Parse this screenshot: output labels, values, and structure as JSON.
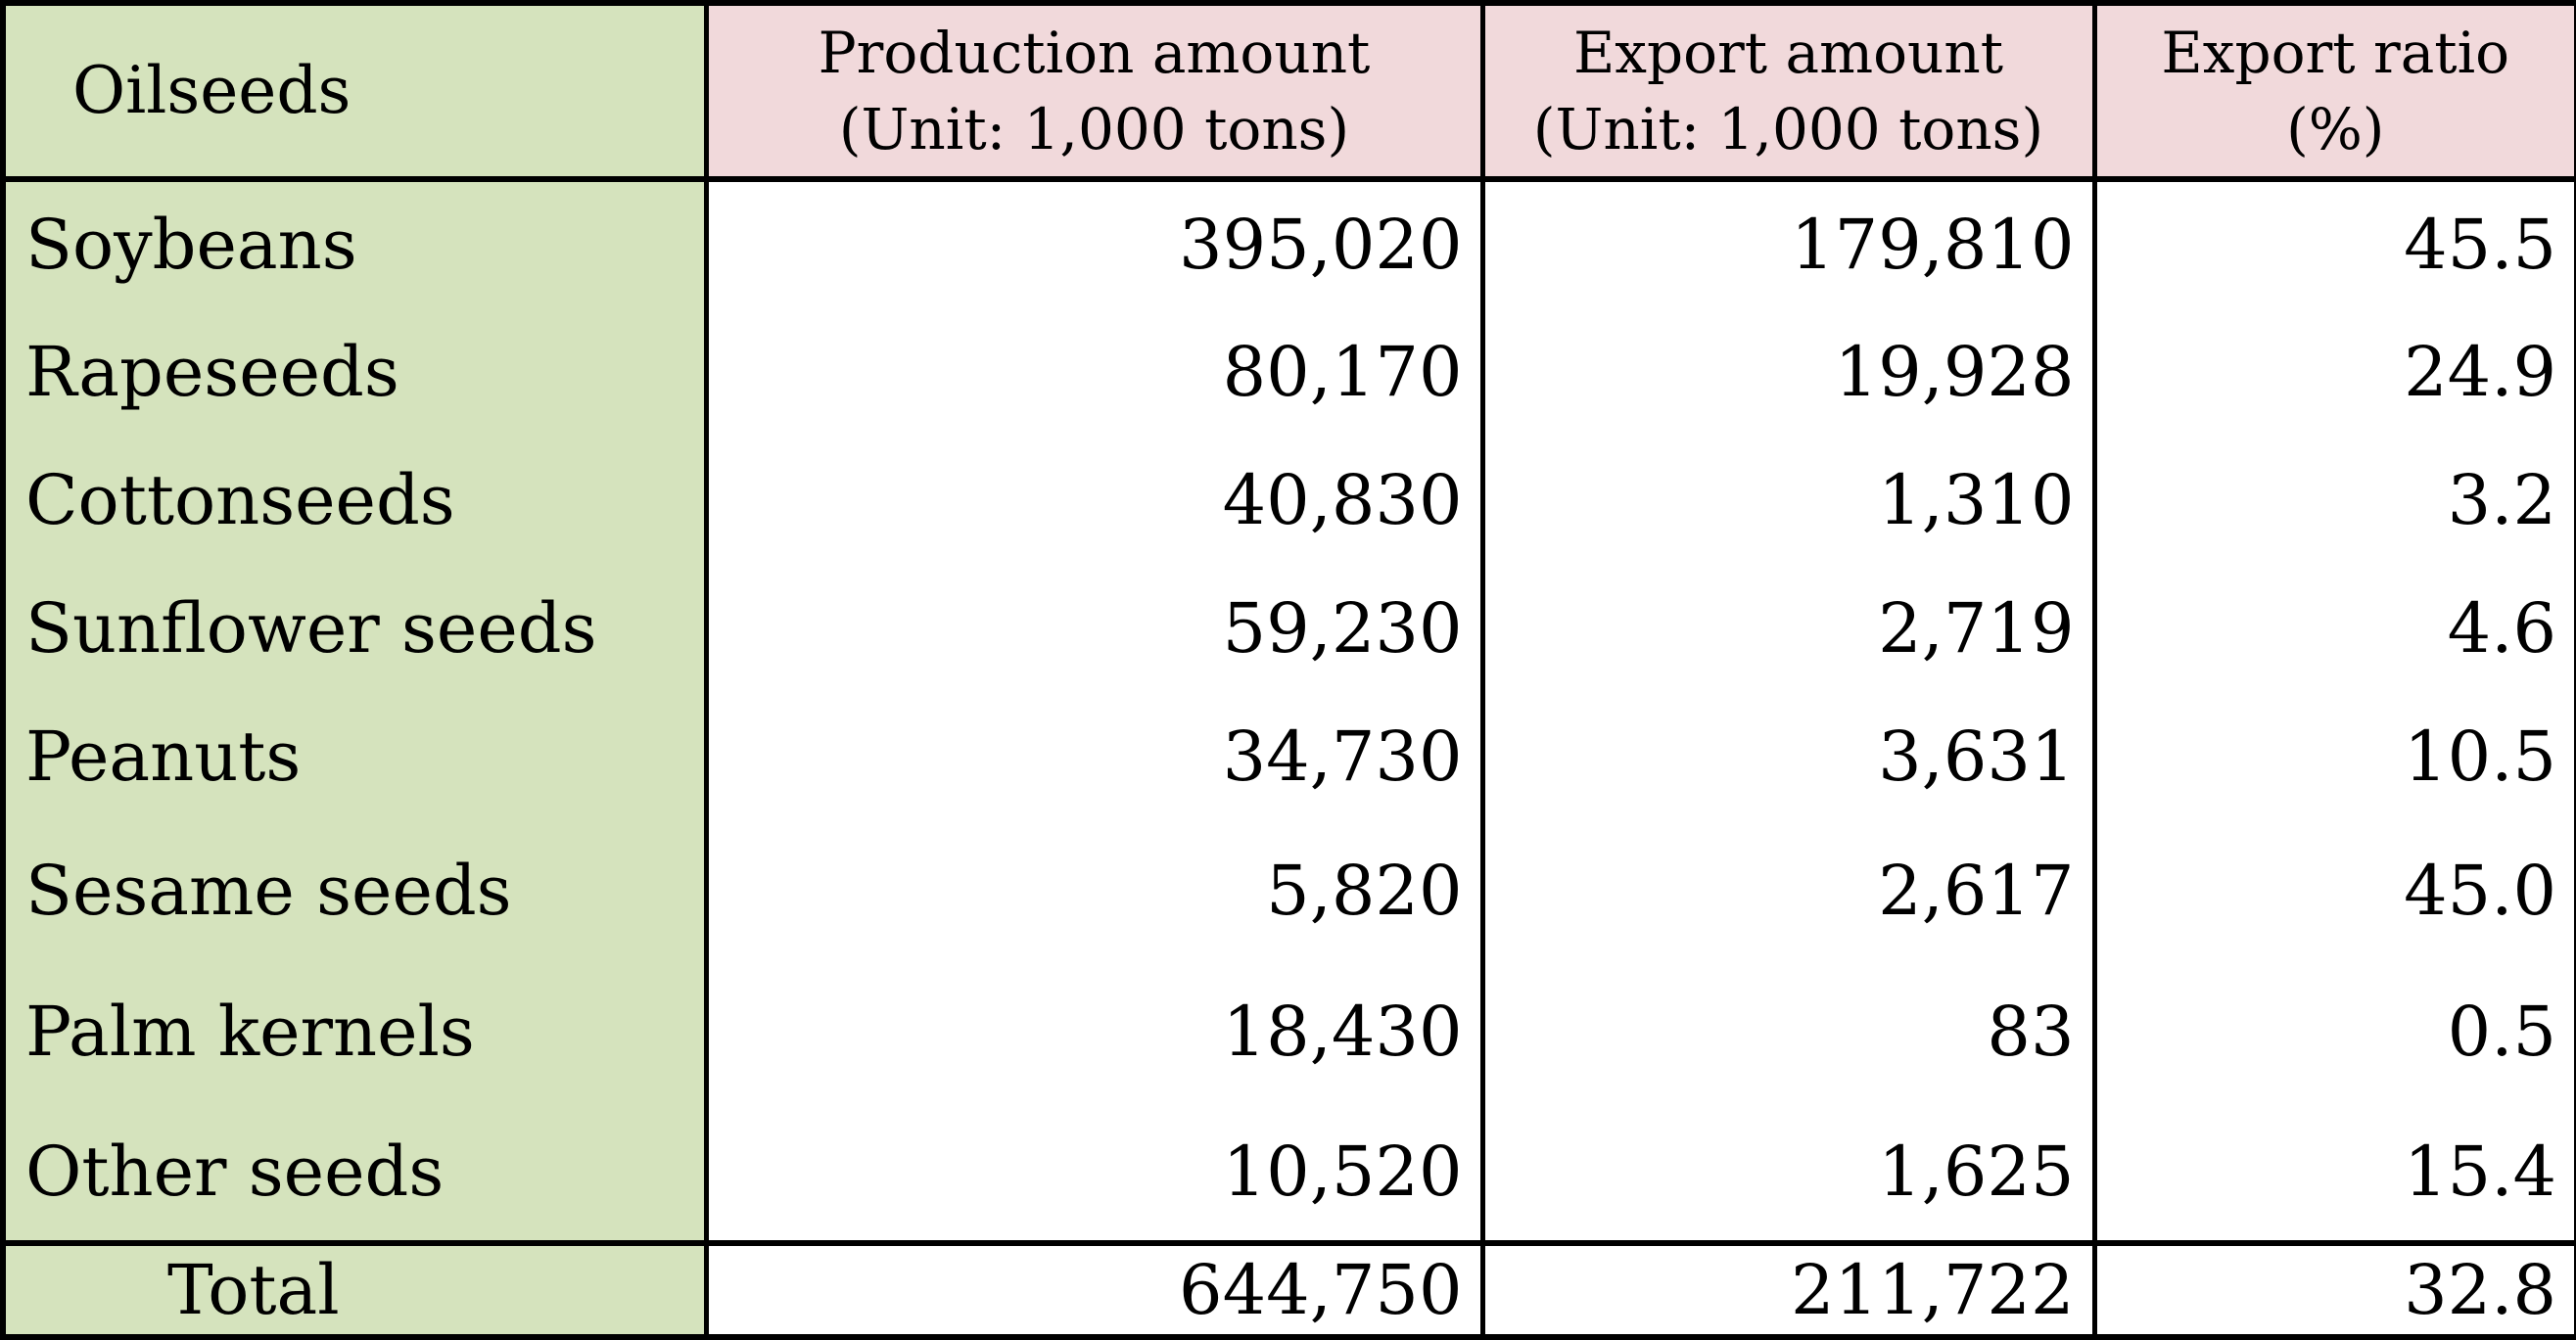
{
  "colors": {
    "label_column_bg": "#d5e3bd",
    "header_bg": "#f1d9db",
    "cell_bg": "#ffffff",
    "border": "#000000",
    "text": "#000000"
  },
  "chart_data": {
    "type": "table",
    "title": "",
    "headers": [
      {
        "line1": "Oilseeds"
      },
      {
        "line1": "Production amount",
        "line2": "(Unit: 1,000 tons)"
      },
      {
        "line1": "Export amount",
        "line2": "(Unit: 1,000 tons)"
      },
      {
        "line1": "Export ratio",
        "line2": "(%)"
      }
    ],
    "rows": [
      {
        "name": "Soybeans",
        "production": "395,020",
        "export": "179,810",
        "ratio": "45.5"
      },
      {
        "name": "Rapeseeds",
        "production": "80,170",
        "export": "19,928",
        "ratio": "24.9"
      },
      {
        "name": "Cottonseeds",
        "production": "40,830",
        "export": "1,310",
        "ratio": "3.2"
      },
      {
        "name": "Sunflower seeds",
        "production": "59,230",
        "export": "2,719",
        "ratio": "4.6"
      },
      {
        "name": "Peanuts",
        "production": "34,730",
        "export": "3,631",
        "ratio": "10.5"
      },
      {
        "name": "Sesame seeds",
        "production": "5,820",
        "export": "2,617",
        "ratio": "45.0"
      },
      {
        "name": "Palm kernels",
        "production": "18,430",
        "export": "83",
        "ratio": "0.5"
      },
      {
        "name": "Other seeds",
        "production": "10,520",
        "export": "1,625",
        "ratio": "15.4"
      }
    ],
    "total": {
      "name": "Total",
      "production": "644,750",
      "export": "211,722",
      "ratio": "32.8"
    }
  }
}
